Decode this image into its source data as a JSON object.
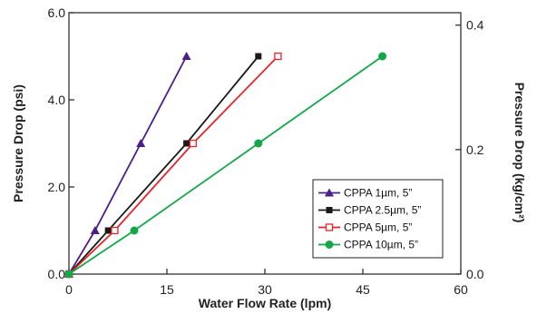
{
  "chart_data": {
    "type": "line",
    "xlabel": "Water Flow Rate (lpm)",
    "ylabel": "Pressure Drop (psi)",
    "y2label": "Pressure Drop (kg/cm²)",
    "xlim": [
      0,
      60
    ],
    "ylim": [
      0,
      6
    ],
    "y2lim": [
      0,
      0.42
    ],
    "xticks": [
      "0",
      "15",
      "30",
      "45",
      "60"
    ],
    "yticks": [
      "0.0",
      "2.0",
      "4.0",
      "6.0"
    ],
    "y2ticks": [
      "0.0",
      "0.2",
      "0.4"
    ],
    "legend_position": "lower-right",
    "grid": false,
    "series": [
      {
        "name": "CPPA 1µm, 5”",
        "color": "#4b1f8a",
        "marker": "triangle",
        "x": [
          0,
          4,
          11,
          18
        ],
        "y": [
          0,
          1,
          3,
          5
        ]
      },
      {
        "name": "CPPA 2.5µm, 5”",
        "color": "#1a1a1a",
        "marker": "square",
        "x": [
          0,
          6,
          18,
          29
        ],
        "y": [
          0,
          1,
          3,
          5
        ]
      },
      {
        "name": "CPPA 5µm, 5”",
        "color": "#e8232a",
        "marker": "open-square",
        "x": [
          0,
          7,
          19,
          32
        ],
        "y": [
          0,
          1,
          3,
          5
        ]
      },
      {
        "name": "CPPA 10µm, 5”",
        "color": "#12a84a",
        "marker": "circle",
        "x": [
          0,
          10,
          29,
          48
        ],
        "y": [
          0,
          1,
          3,
          5
        ]
      }
    ]
  }
}
